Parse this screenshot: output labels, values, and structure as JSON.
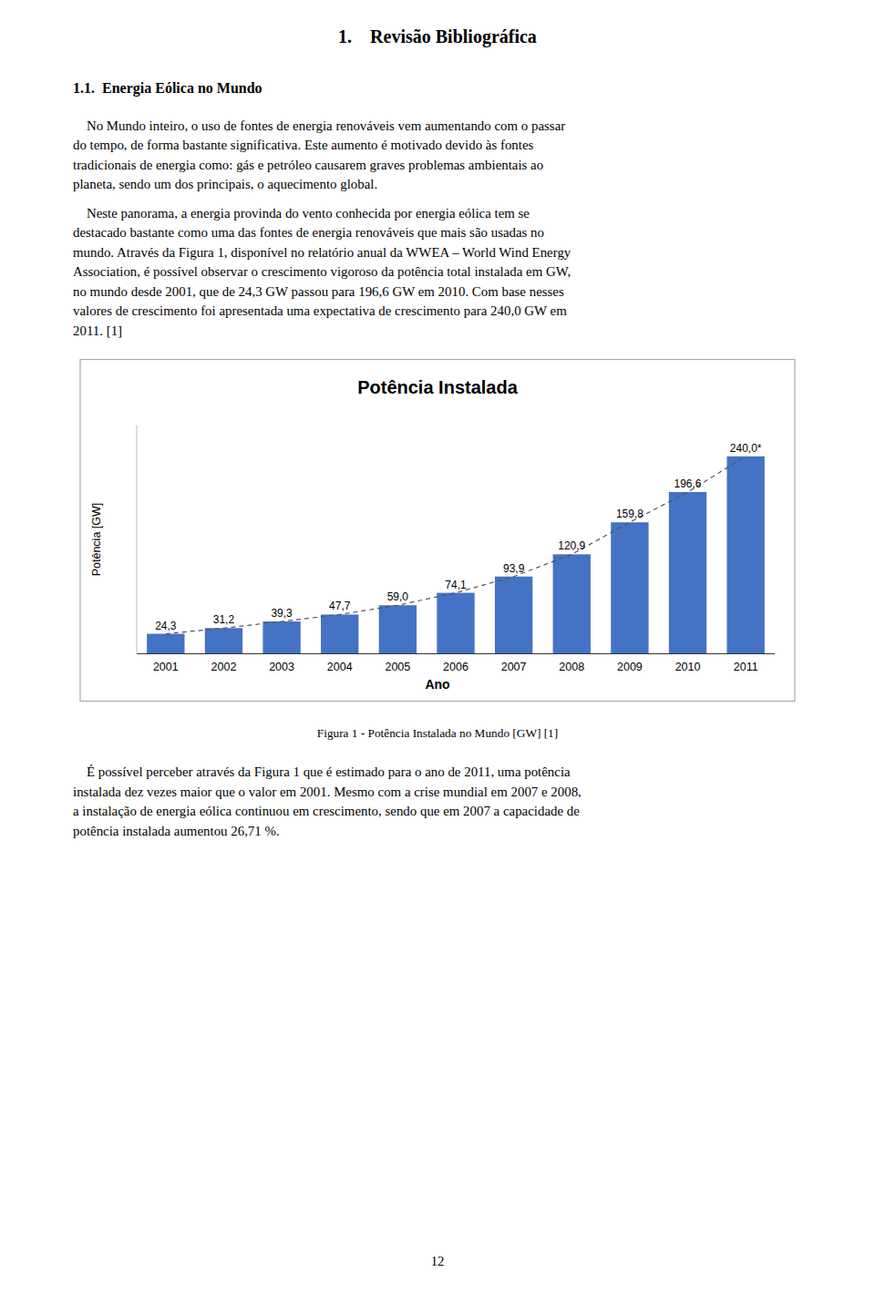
{
  "chapter_title": "1.    Revisão Bibliográfica",
  "section_title": "1.1.  Energia Eólica no Mundo",
  "paragraphs": [
    [
      "    No Mundo inteiro, o uso de fontes de energia renováveis vem aumentando com o passar",
      "do tempo, de forma bastante significativa. Este aumento é motivado devido às fontes",
      "tradicionais de energia como: gás e petróleo causarem graves problemas ambientais ao",
      "planeta, sendo um dos principais, o aquecimento global."
    ],
    [
      "    Neste panorama, a energia provinda do vento conhecida por energia eólica tem se",
      "destacado bastante como uma das fontes de energia renováveis que mais são usadas no",
      "mundo. Através da Figura 1, disponível no relatório anual da WWEA – World Wind Energy",
      "Association, é possível observar o crescimento vigoroso da potência total instalada em GW,",
      "no mundo desde 2001, que de 24,3 GW passou para 196,6 GW em 2010. Com base nesses",
      "valores de crescimento foi apresentada uma expectativa de crescimento para 240,0 GW em",
      "2011. [1]"
    ]
  ],
  "chart_data": {
    "type": "bar",
    "title": "Potência Instalada",
    "x_label": "Ano",
    "y_label": "Potência [GW]",
    "categories": [
      "2001",
      "2002",
      "2003",
      "2004",
      "2005",
      "2006",
      "2007",
      "2008",
      "2009",
      "2010",
      "2011"
    ],
    "series": [
      {
        "type": "bar",
        "color": "#4472C4",
        "values": [
          24.3,
          31.2,
          39.3,
          47.7,
          59.0,
          74.1,
          93.9,
          120.9,
          159.8,
          196.6,
          240.0
        ],
        "value_labels": [
          "24,3",
          "31,2",
          "39,3",
          "47,7",
          "59,0",
          "74,1",
          "93,9",
          "120,9",
          "159,8",
          "196,6",
          "240,0*"
        ]
      },
      {
        "type": "line",
        "color": "#555555",
        "line_style": "dashed",
        "values": [
          24.3,
          31.2,
          39.3,
          47.7,
          59.0,
          74.1,
          93.9,
          120.9,
          159.8,
          196.6,
          240.0
        ]
      }
    ],
    "data_labels": true,
    "ylim": [
      0,
      278
    ],
    "yticks": [],
    "tick_labels": "x",
    "grid": false
  },
  "figure_caption": "Figura 1 - Potência Instalada no Mundo [GW] [1]",
  "closing_paragraph": [
    "    É possível perceber através da Figura 1 que é estimado para o ano de 2011, uma potência",
    "instalada dez vezes maior que o valor em 2001. Mesmo com a crise mundial em 2007 e 2008,",
    "a instalação de energia eólica continuou em crescimento, sendo que em 2007 a capacidade de",
    "potência instalada aumentou 26,71 %."
  ],
  "page_number": "12"
}
